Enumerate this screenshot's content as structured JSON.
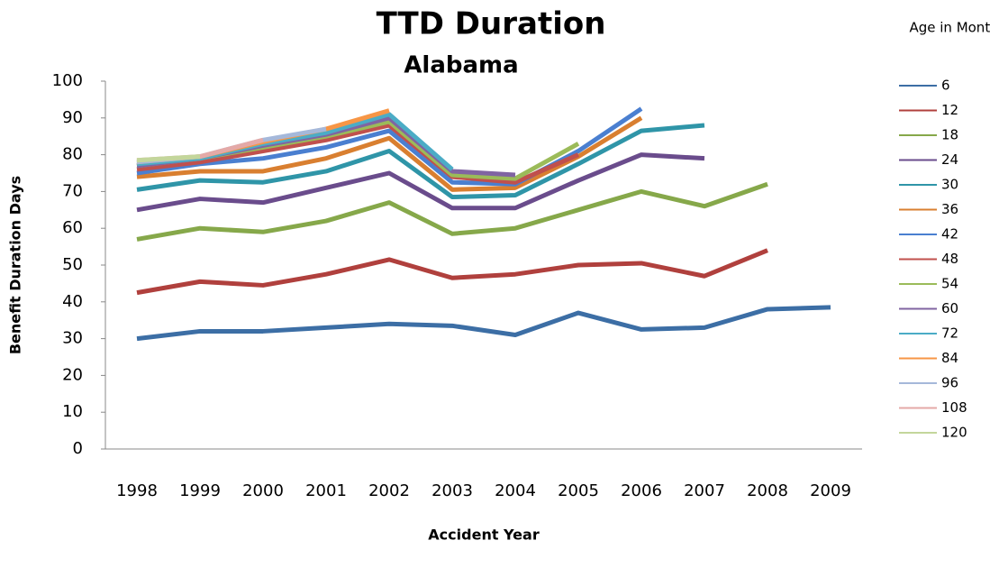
{
  "chart_data": {
    "type": "line",
    "title": "TTD Duration",
    "subtitle": "Alabama",
    "x_label": "Accident Year",
    "y_label": "Benefit Duration Days",
    "legend_title": "Age in Months",
    "categories": [
      "1998",
      "1999",
      "2000",
      "2001",
      "2002",
      "2003",
      "2004",
      "2005",
      "2006",
      "2007",
      "2008",
      "2009"
    ],
    "ylim": [
      0,
      100
    ],
    "yticks": [
      0,
      10,
      20,
      30,
      40,
      50,
      60,
      70,
      80,
      90,
      100
    ],
    "legend": "right",
    "series": [
      {
        "name": "6",
        "color": "#3c6ea5",
        "values": [
          30,
          32,
          32,
          33,
          34,
          33.5,
          31,
          37,
          32.5,
          33,
          38,
          38.5
        ]
      },
      {
        "name": "12",
        "color": "#b0403d",
        "values": [
          42.5,
          45.5,
          44.5,
          47.5,
          51.5,
          46.5,
          47.5,
          50,
          50.5,
          47,
          54,
          null
        ]
      },
      {
        "name": "18",
        "color": "#86a84a",
        "values": [
          57,
          60,
          59,
          62,
          67,
          58.5,
          60,
          65,
          70,
          66,
          72,
          null
        ]
      },
      {
        "name": "24",
        "color": "#6a4c8c",
        "values": [
          65,
          68,
          67,
          71,
          75,
          65.5,
          65.5,
          73,
          80,
          79,
          null,
          null
        ]
      },
      {
        "name": "30",
        "color": "#2f95a8",
        "values": [
          70.5,
          73,
          72.5,
          75.5,
          81,
          68.5,
          69,
          77.5,
          86.5,
          88,
          null,
          null
        ]
      },
      {
        "name": "36",
        "color": "#d97f30",
        "values": [
          74,
          75.5,
          75.5,
          79,
          84.5,
          70.5,
          71,
          79.5,
          90,
          null,
          null,
          null
        ]
      },
      {
        "name": "42",
        "color": "#4a7fd0",
        "values": [
          75,
          77.5,
          79,
          82,
          86.5,
          72.5,
          72,
          81,
          92.5,
          null,
          null,
          null
        ]
      },
      {
        "name": "48",
        "color": "#c0504d",
        "values": [
          76,
          78,
          81,
          84,
          88,
          74,
          72.5,
          80,
          null,
          null,
          null,
          null
        ]
      },
      {
        "name": "54",
        "color": "#9bbb59",
        "values": [
          77,
          79,
          82,
          85,
          89,
          74.5,
          73.5,
          83,
          null,
          null,
          null,
          null
        ]
      },
      {
        "name": "60",
        "color": "#8064a2",
        "values": [
          77,
          79,
          82.5,
          85.5,
          90,
          75.5,
          74.5,
          null,
          null,
          null,
          null,
          null
        ]
      },
      {
        "name": "72",
        "color": "#4bacc6",
        "values": [
          77.5,
          79,
          83,
          86,
          91,
          76,
          null,
          null,
          null,
          null,
          null,
          null
        ]
      },
      {
        "name": "84",
        "color": "#f79646",
        "values": [
          78,
          79.5,
          83.5,
          87,
          92,
          null,
          null,
          null,
          null,
          null,
          null,
          null
        ]
      },
      {
        "name": "96",
        "color": "#a5b8da",
        "values": [
          78,
          79.5,
          84,
          87,
          null,
          null,
          null,
          null,
          null,
          null,
          null,
          null
        ]
      },
      {
        "name": "108",
        "color": "#e4a9a7",
        "values": [
          78.5,
          79.5,
          84,
          null,
          null,
          null,
          null,
          null,
          null,
          null,
          null,
          null
        ]
      },
      {
        "name": "120",
        "color": "#c3d69b",
        "values": [
          78.5,
          79.5,
          null,
          null,
          null,
          null,
          null,
          null,
          null,
          null,
          null,
          null
        ]
      }
    ]
  }
}
